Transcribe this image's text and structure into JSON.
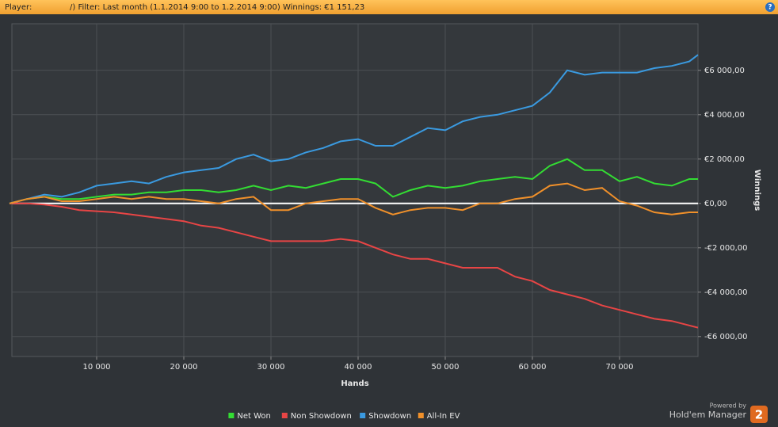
{
  "header": {
    "player_label": "Player:",
    "filter": "/) Filter: Last month (1.1.2014 9:00 to 1.2.2014 9:00) Winnings: €1 151,23",
    "help": "?"
  },
  "footer": {
    "powered_by": "Powered by",
    "brand": "Hold'em Manager",
    "badge": "2"
  },
  "chart_data": {
    "type": "line",
    "x_label": "Hands",
    "y_label": "Winnings",
    "x": [
      0,
      2000,
      4000,
      6000,
      8000,
      10000,
      12000,
      14000,
      16000,
      18000,
      20000,
      22000,
      24000,
      26000,
      28000,
      30000,
      32000,
      34000,
      36000,
      38000,
      40000,
      42000,
      44000,
      46000,
      48000,
      50000,
      52000,
      54000,
      56000,
      58000,
      60000,
      62000,
      64000,
      66000,
      68000,
      70000,
      72000,
      74000,
      76000,
      78000,
      79000
    ],
    "series": [
      {
        "name": "Net Won",
        "color": "#33dd33",
        "values": [
          0,
          200,
          300,
          200,
          200,
          300,
          400,
          400,
          500,
          500,
          600,
          600,
          500,
          600,
          800,
          600,
          800,
          700,
          900,
          1100,
          1100,
          900,
          300,
          600,
          800,
          700,
          800,
          1000,
          1100,
          1200,
          1100,
          1700,
          2000,
          1500,
          1500,
          1000,
          1200,
          900,
          800,
          1100,
          1100
        ]
      },
      {
        "name": "Non Showdown",
        "color": "#e84545",
        "values": [
          0,
          0,
          -50,
          -150,
          -300,
          -350,
          -400,
          -500,
          -600,
          -700,
          -800,
          -1000,
          -1100,
          -1300,
          -1500,
          -1700,
          -1700,
          -1700,
          -1700,
          -1600,
          -1700,
          -2000,
          -2300,
          -2500,
          -2500,
          -2700,
          -2900,
          -2900,
          -2900,
          -3300,
          -3500,
          -3900,
          -4100,
          -4300,
          -4600,
          -4800,
          -5000,
          -5200,
          -5300,
          -5500,
          -5600
        ]
      },
      {
        "name": "Showdown",
        "color": "#3a9ae0",
        "values": [
          0,
          200,
          400,
          300,
          500,
          800,
          900,
          1000,
          900,
          1200,
          1400,
          1500,
          1600,
          2000,
          2200,
          1900,
          2000,
          2300,
          2500,
          2800,
          2900,
          2600,
          2600,
          3000,
          3400,
          3300,
          3700,
          3900,
          4000,
          4200,
          4400,
          5000,
          6000,
          5800,
          5900,
          5900,
          5900,
          6100,
          6200,
          6400,
          6700
        ]
      },
      {
        "name": "All-In EV",
        "color": "#f0902a",
        "values": [
          0,
          200,
          300,
          100,
          100,
          200,
          300,
          200,
          300,
          200,
          200,
          100,
          0,
          200,
          300,
          -300,
          -300,
          0,
          100,
          200,
          200,
          -200,
          -500,
          -300,
          -200,
          -200,
          -300,
          0,
          0,
          200,
          300,
          800,
          900,
          600,
          700,
          100,
          -100,
          -400,
          -500,
          -400,
          -400
        ]
      }
    ],
    "xlim": [
      0,
      79000
    ],
    "ylim": [
      -6900,
      8100
    ],
    "xticks": [
      {
        "value": 10000,
        "label": "10 000"
      },
      {
        "value": 20000,
        "label": "20 000"
      },
      {
        "value": 30000,
        "label": "30 000"
      },
      {
        "value": 40000,
        "label": "40 000"
      },
      {
        "value": 50000,
        "label": "50 000"
      },
      {
        "value": 60000,
        "label": "60 000"
      },
      {
        "value": 70000,
        "label": "70 000"
      }
    ],
    "yticks": [
      {
        "value": -6000,
        "label": "-€6 000,00"
      },
      {
        "value": -4000,
        "label": "-€4 000,00"
      },
      {
        "value": -2000,
        "label": "-€2 000,00"
      },
      {
        "value": 0,
        "label": "€0,00"
      },
      {
        "value": 2000,
        "label": "€2 000,00"
      },
      {
        "value": 4000,
        "label": "€4 000,00"
      },
      {
        "value": 6000,
        "label": "€6 000,00"
      }
    ],
    "grid": true,
    "legend": "bottom"
  }
}
